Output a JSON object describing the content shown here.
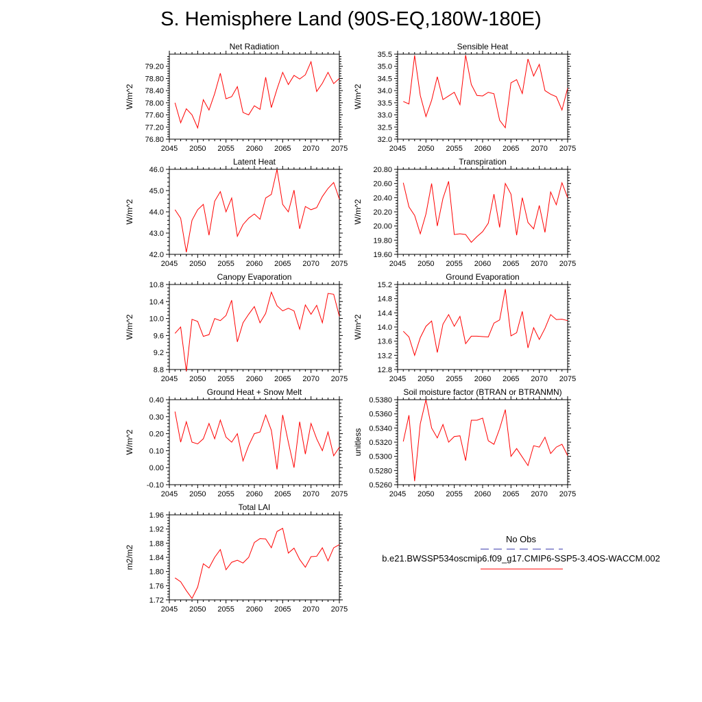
{
  "title": "S. Hemisphere Land (90S-EQ,180W-180E)",
  "colors": {
    "series": "#ff0000",
    "obs": "#3333aa",
    "axis": "#000000"
  },
  "legend": {
    "obs_label": "No Obs",
    "case_label": "b.e21.BWSSP534oscmip6.f09_g17.CMIP6-SSP5-3.4OS-WACCM.002"
  },
  "chart_data": [
    {
      "type": "line",
      "title": "Net Radiation",
      "ylabel": "W/m^2",
      "xlim": [
        2045,
        2075
      ],
      "xticks": [
        2045,
        2050,
        2055,
        2060,
        2065,
        2070,
        2075
      ],
      "xticklabels": [
        "2045",
        "2050",
        "2055",
        "2060",
        "2065",
        "2070",
        "2075"
      ],
      "ylim": [
        76.8,
        79.6
      ],
      "yticks": [
        76.8,
        77.2,
        77.6,
        78.0,
        78.4,
        78.8,
        79.2
      ],
      "yticklabels": [
        "76.80",
        "77.20",
        "77.60",
        "78.00",
        "78.40",
        "78.80",
        "79.20"
      ],
      "x": [
        2046,
        2047,
        2048,
        2049,
        2050,
        2051,
        2052,
        2053,
        2054,
        2055,
        2056,
        2057,
        2058,
        2059,
        2060,
        2061,
        2062,
        2063,
        2064,
        2065,
        2066,
        2067,
        2068,
        2069,
        2070,
        2071,
        2072,
        2073,
        2074,
        2075
      ],
      "y": [
        78.0,
        77.34,
        77.8,
        77.6,
        77.17,
        78.1,
        77.76,
        78.3,
        78.97,
        78.13,
        78.2,
        78.53,
        77.68,
        77.6,
        77.9,
        77.78,
        78.84,
        77.84,
        78.45,
        79.0,
        78.6,
        78.9,
        78.78,
        78.92,
        79.35,
        78.37,
        78.64,
        79.0,
        78.63,
        78.8
      ]
    },
    {
      "type": "line",
      "title": "Sensible Heat",
      "ylabel": "W/m^2",
      "xlim": [
        2045,
        2075
      ],
      "xticks": [
        2045,
        2050,
        2055,
        2060,
        2065,
        2070,
        2075
      ],
      "xticklabels": [
        "2045",
        "2050",
        "2055",
        "2060",
        "2065",
        "2070",
        "2075"
      ],
      "ylim": [
        32.0,
        35.5
      ],
      "yticks": [
        32.0,
        32.5,
        33.0,
        33.5,
        34.0,
        34.5,
        35.0,
        35.5
      ],
      "yticklabels": [
        "32.0",
        "32.5",
        "33.0",
        "33.5",
        "34.0",
        "34.5",
        "35.0",
        "35.5"
      ],
      "x": [
        2046,
        2047,
        2048,
        2049,
        2050,
        2051,
        2052,
        2053,
        2054,
        2055,
        2056,
        2057,
        2058,
        2059,
        2060,
        2061,
        2062,
        2063,
        2064,
        2065,
        2066,
        2067,
        2068,
        2069,
        2070,
        2071,
        2072,
        2073,
        2074,
        2075
      ],
      "y": [
        33.55,
        33.45,
        35.45,
        33.8,
        32.93,
        33.6,
        34.57,
        33.63,
        33.78,
        33.93,
        33.42,
        35.46,
        34.25,
        33.8,
        33.78,
        33.93,
        33.87,
        32.78,
        32.47,
        34.32,
        34.45,
        33.88,
        35.3,
        34.6,
        35.08,
        34.0,
        33.85,
        33.75,
        33.2,
        34.1
      ]
    },
    {
      "type": "line",
      "title": "Latent Heat",
      "ylabel": "W/m^2",
      "xlim": [
        2045,
        2075
      ],
      "xticks": [
        2045,
        2050,
        2055,
        2060,
        2065,
        2070,
        2075
      ],
      "xticklabels": [
        "2045",
        "2050",
        "2055",
        "2060",
        "2065",
        "2070",
        "2075"
      ],
      "ylim": [
        42.0,
        46.0
      ],
      "yticks": [
        42.0,
        43.0,
        44.0,
        45.0,
        46.0
      ],
      "yticklabels": [
        "42.0",
        "43.0",
        "44.0",
        "45.0",
        "46.0"
      ],
      "x": [
        2046,
        2047,
        2048,
        2049,
        2050,
        2051,
        2052,
        2053,
        2054,
        2055,
        2056,
        2057,
        2058,
        2059,
        2060,
        2061,
        2062,
        2063,
        2064,
        2065,
        2066,
        2067,
        2068,
        2069,
        2070,
        2071,
        2072,
        2073,
        2074,
        2075
      ],
      "y": [
        44.1,
        43.7,
        42.1,
        43.6,
        44.1,
        44.35,
        42.9,
        44.5,
        44.95,
        44.0,
        44.65,
        42.85,
        43.4,
        43.7,
        43.9,
        43.65,
        44.65,
        44.82,
        46.0,
        44.35,
        44.0,
        45.02,
        43.2,
        44.25,
        44.1,
        44.2,
        44.72,
        45.1,
        45.38,
        44.6
      ]
    },
    {
      "type": "line",
      "title": "Transpiration",
      "ylabel": "W/m^2",
      "xlim": [
        2045,
        2075
      ],
      "xticks": [
        2045,
        2050,
        2055,
        2060,
        2065,
        2070,
        2075
      ],
      "xticklabels": [
        "2045",
        "2050",
        "2055",
        "2060",
        "2065",
        "2070",
        "2075"
      ],
      "ylim": [
        19.6,
        20.8
      ],
      "yticks": [
        19.6,
        19.8,
        20.0,
        20.2,
        20.4,
        20.6,
        20.8
      ],
      "yticklabels": [
        "19.60",
        "19.80",
        "20.00",
        "20.20",
        "20.40",
        "20.60",
        "20.80"
      ],
      "x": [
        2046,
        2047,
        2048,
        2049,
        2050,
        2051,
        2052,
        2053,
        2054,
        2055,
        2056,
        2057,
        2058,
        2059,
        2060,
        2061,
        2062,
        2063,
        2064,
        2065,
        2066,
        2067,
        2068,
        2069,
        2070,
        2071,
        2072,
        2073,
        2074,
        2075
      ],
      "y": [
        20.61,
        20.27,
        20.15,
        19.89,
        20.17,
        20.6,
        20.0,
        20.39,
        20.63,
        19.88,
        19.89,
        19.88,
        19.77,
        19.85,
        19.92,
        20.04,
        20.45,
        19.98,
        20.6,
        20.45,
        19.87,
        20.4,
        20.05,
        19.96,
        20.29,
        19.91,
        20.48,
        20.3,
        20.61,
        20.4
      ]
    },
    {
      "type": "line",
      "title": "Canopy Evaporation",
      "ylabel": "W/m^2",
      "xlim": [
        2045,
        2075
      ],
      "xticks": [
        2045,
        2050,
        2055,
        2060,
        2065,
        2070,
        2075
      ],
      "xticklabels": [
        "2045",
        "2050",
        "2055",
        "2060",
        "2065",
        "2070",
        "2075"
      ],
      "ylim": [
        8.8,
        10.8
      ],
      "yticks": [
        8.8,
        9.2,
        9.6,
        10.0,
        10.4,
        10.8
      ],
      "yticklabels": [
        "8.8",
        "9.2",
        "9.6",
        "10.0",
        "10.4",
        "10.8"
      ],
      "x": [
        2046,
        2047,
        2048,
        2049,
        2050,
        2051,
        2052,
        2053,
        2054,
        2055,
        2056,
        2057,
        2058,
        2059,
        2060,
        2061,
        2062,
        2063,
        2064,
        2065,
        2066,
        2067,
        2068,
        2069,
        2070,
        2071,
        2072,
        2073,
        2074,
        2075
      ],
      "y": [
        9.65,
        9.8,
        8.76,
        9.98,
        9.93,
        9.58,
        9.62,
        10.0,
        9.95,
        10.07,
        10.43,
        9.45,
        9.9,
        10.1,
        10.28,
        9.9,
        10.12,
        10.62,
        10.3,
        10.18,
        10.24,
        10.18,
        9.75,
        10.32,
        10.1,
        10.31,
        9.9,
        10.59,
        10.57,
        10.05
      ]
    },
    {
      "type": "line",
      "title": "Ground Evaporation",
      "ylabel": "W/m^2",
      "xlim": [
        2045,
        2075
      ],
      "xticks": [
        2045,
        2050,
        2055,
        2060,
        2065,
        2070,
        2075
      ],
      "xticklabels": [
        "2045",
        "2050",
        "2055",
        "2060",
        "2065",
        "2070",
        "2075"
      ],
      "ylim": [
        12.8,
        15.2
      ],
      "yticks": [
        12.8,
        13.2,
        13.6,
        14.0,
        14.4,
        14.8,
        15.2
      ],
      "yticklabels": [
        "12.8",
        "13.2",
        "13.6",
        "14.0",
        "14.4",
        "14.8",
        "15.2"
      ],
      "x": [
        2046,
        2047,
        2048,
        2049,
        2050,
        2051,
        2052,
        2053,
        2054,
        2055,
        2056,
        2057,
        2058,
        2059,
        2060,
        2061,
        2062,
        2063,
        2064,
        2065,
        2066,
        2067,
        2068,
        2069,
        2070,
        2071,
        2072,
        2073,
        2074,
        2075
      ],
      "y": [
        13.88,
        13.72,
        13.2,
        13.7,
        14.02,
        14.17,
        13.28,
        14.08,
        14.35,
        14.02,
        14.3,
        13.53,
        13.74,
        13.74,
        13.73,
        13.72,
        14.11,
        14.2,
        15.07,
        13.75,
        13.84,
        14.44,
        13.41,
        13.98,
        13.65,
        13.96,
        14.35,
        14.21,
        14.22,
        14.18
      ]
    },
    {
      "type": "line",
      "title": "Ground Heat + Snow Melt",
      "ylabel": "W/m^2",
      "xlim": [
        2045,
        2075
      ],
      "xticks": [
        2045,
        2050,
        2055,
        2060,
        2065,
        2070,
        2075
      ],
      "xticklabels": [
        "2045",
        "2050",
        "2055",
        "2060",
        "2065",
        "2070",
        "2075"
      ],
      "ylim": [
        -0.1,
        0.4
      ],
      "yticks": [
        -0.1,
        0.0,
        0.1,
        0.2,
        0.3,
        0.4
      ],
      "yticklabels": [
        "-0.10",
        "0.00",
        "0.10",
        "0.20",
        "0.30",
        "0.40"
      ],
      "x": [
        2046,
        2047,
        2048,
        2049,
        2050,
        2051,
        2052,
        2053,
        2054,
        2055,
        2056,
        2057,
        2058,
        2059,
        2060,
        2061,
        2062,
        2063,
        2064,
        2065,
        2066,
        2067,
        2068,
        2069,
        2070,
        2071,
        2072,
        2073,
        2074,
        2075
      ],
      "y": [
        0.33,
        0.15,
        0.27,
        0.15,
        0.14,
        0.17,
        0.26,
        0.17,
        0.28,
        0.18,
        0.15,
        0.2,
        0.04,
        0.13,
        0.2,
        0.21,
        0.31,
        0.22,
        -0.01,
        0.31,
        0.15,
        0.0,
        0.27,
        0.08,
        0.26,
        0.17,
        0.1,
        0.21,
        0.07,
        0.12
      ]
    },
    {
      "type": "line",
      "title": "Soil moisture factor (BTRAN or BTRANMN)",
      "ylabel": "unitless",
      "xlim": [
        2045,
        2075
      ],
      "xticks": [
        2045,
        2050,
        2055,
        2060,
        2065,
        2070,
        2075
      ],
      "xticklabels": [
        "2045",
        "2050",
        "2055",
        "2060",
        "2065",
        "2070",
        "2075"
      ],
      "ylim": [
        0.526,
        0.538
      ],
      "yticks": [
        0.526,
        0.528,
        0.53,
        0.532,
        0.534,
        0.536,
        0.538
      ],
      "yticklabels": [
        "0.5260",
        "0.5280",
        "0.5300",
        "0.5320",
        "0.5340",
        "0.5360",
        "0.5380"
      ],
      "x": [
        2046,
        2047,
        2048,
        2049,
        2050,
        2051,
        2052,
        2053,
        2054,
        2055,
        2056,
        2057,
        2058,
        2059,
        2060,
        2061,
        2062,
        2063,
        2064,
        2065,
        2066,
        2067,
        2068,
        2069,
        2070,
        2071,
        2072,
        2073,
        2074,
        2075
      ],
      "y": [
        0.5321,
        0.5358,
        0.5265,
        0.5346,
        0.538,
        0.534,
        0.5326,
        0.5345,
        0.532,
        0.5328,
        0.5329,
        0.5294,
        0.5351,
        0.5351,
        0.5354,
        0.5322,
        0.5317,
        0.5339,
        0.5366,
        0.53,
        0.5311,
        0.5299,
        0.5287,
        0.5315,
        0.5313,
        0.5327,
        0.5304,
        0.5313,
        0.5317,
        0.5301
      ]
    },
    {
      "type": "line",
      "title": "Total LAI",
      "ylabel": "m2/m2",
      "xlim": [
        2045,
        2075
      ],
      "xticks": [
        2045,
        2050,
        2055,
        2060,
        2065,
        2070,
        2075
      ],
      "xticklabels": [
        "2045",
        "2050",
        "2055",
        "2060",
        "2065",
        "2070",
        "2075"
      ],
      "ylim": [
        1.72,
        1.96
      ],
      "yticks": [
        1.72,
        1.76,
        1.8,
        1.84,
        1.88,
        1.92,
        1.96
      ],
      "yticklabels": [
        "1.72",
        "1.76",
        "1.80",
        "1.84",
        "1.88",
        "1.92",
        "1.96"
      ],
      "x": [
        2046,
        2047,
        2048,
        2049,
        2050,
        2051,
        2052,
        2053,
        2054,
        2055,
        2056,
        2057,
        2058,
        2059,
        2060,
        2061,
        2062,
        2063,
        2064,
        2065,
        2066,
        2067,
        2068,
        2069,
        2070,
        2071,
        2072,
        2073,
        2074,
        2075
      ],
      "y": [
        1.782,
        1.771,
        1.746,
        1.724,
        1.756,
        1.822,
        1.81,
        1.84,
        1.862,
        1.805,
        1.826,
        1.832,
        1.824,
        1.84,
        1.882,
        1.893,
        1.892,
        1.867,
        1.913,
        1.922,
        1.852,
        1.866,
        1.834,
        1.812,
        1.842,
        1.843,
        1.867,
        1.83,
        1.867,
        1.876
      ]
    }
  ]
}
